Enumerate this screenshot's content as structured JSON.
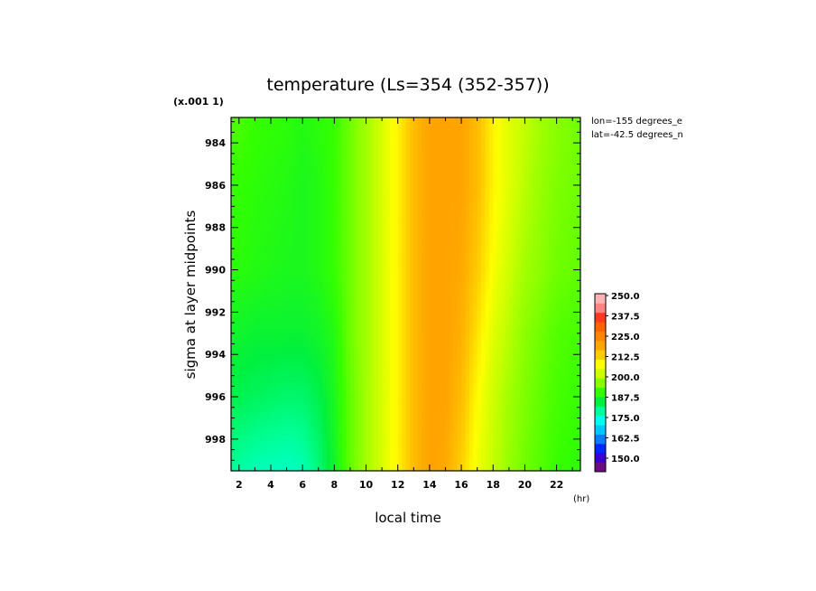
{
  "chart_data": {
    "type": "heatmap",
    "title": "temperature (Ls=354 (352-357))",
    "xlabel": "local time",
    "ylabel": "sigma at layer midpoints",
    "x_unit": "(hr)",
    "y_scale_note": "(x.001 1)",
    "annotations": [
      "lon=-155 degrees_e",
      "lat=-42.5 degrees_n"
    ],
    "xlim": [
      1.5,
      23.5
    ],
    "ylim": [
      982.8,
      999.5
    ],
    "y_inverted": true,
    "x_ticks": [
      "2",
      "4",
      "6",
      "8",
      "10",
      "12",
      "14",
      "16",
      "18",
      "20",
      "22"
    ],
    "y_ticks": [
      "984",
      "986",
      "988",
      "990",
      "992",
      "994",
      "996",
      "998"
    ],
    "x": [
      1.5,
      3,
      5,
      6,
      7,
      8,
      9,
      10,
      11,
      12,
      13,
      14,
      15,
      16,
      17,
      18,
      19,
      20,
      21,
      22,
      23.5
    ],
    "y": [
      982.8,
      986,
      990,
      993,
      996,
      999.5
    ],
    "z": [
      [
        195,
        193,
        192,
        191,
        192,
        193,
        197,
        201,
        206,
        212,
        219,
        223,
        223,
        223,
        219,
        212,
        207,
        204,
        201,
        199,
        197
      ],
      [
        193,
        192,
        191,
        190,
        191,
        193,
        197,
        201,
        206,
        212,
        219,
        223,
        223,
        223,
        219,
        212,
        207,
        203,
        200,
        198,
        197
      ],
      [
        192,
        191,
        190,
        190,
        191,
        193,
        197,
        201,
        206,
        212,
        219,
        223,
        223,
        222,
        217,
        210,
        205,
        201,
        199,
        197,
        196
      ],
      [
        189,
        188,
        188,
        188,
        189,
        191,
        197,
        201,
        206,
        212,
        219,
        223,
        223,
        221,
        214,
        207,
        203,
        199,
        197,
        195,
        194
      ],
      [
        186,
        185,
        184,
        184,
        186,
        190,
        196,
        201,
        206,
        212,
        219,
        223,
        223,
        219,
        211,
        205,
        201,
        198,
        196,
        194,
        193
      ],
      [
        181,
        179,
        178,
        179,
        183,
        189,
        196,
        201,
        206,
        212,
        219,
        223,
        222,
        216,
        209,
        204,
        200,
        197,
        195,
        193,
        192
      ]
    ],
    "colorbar": {
      "levels": [
        "250.0",
        "237.5",
        "225.0",
        "212.5",
        "200.0",
        "187.5",
        "175.0",
        "162.5",
        "150.0"
      ],
      "range": [
        145,
        252.5
      ],
      "colors": [
        "#6a0d83",
        "#3c00d0",
        "#0027ff",
        "#0a7cff",
        "#00c8ff",
        "#00ffee",
        "#00ff9c",
        "#00f040",
        "#33ff00",
        "#88ff00",
        "#ccff00",
        "#ffff00",
        "#ffcc00",
        "#ffa500",
        "#ff8400",
        "#ff6300",
        "#ff3a20",
        "#ff8484",
        "#ffb4b4"
      ]
    }
  }
}
